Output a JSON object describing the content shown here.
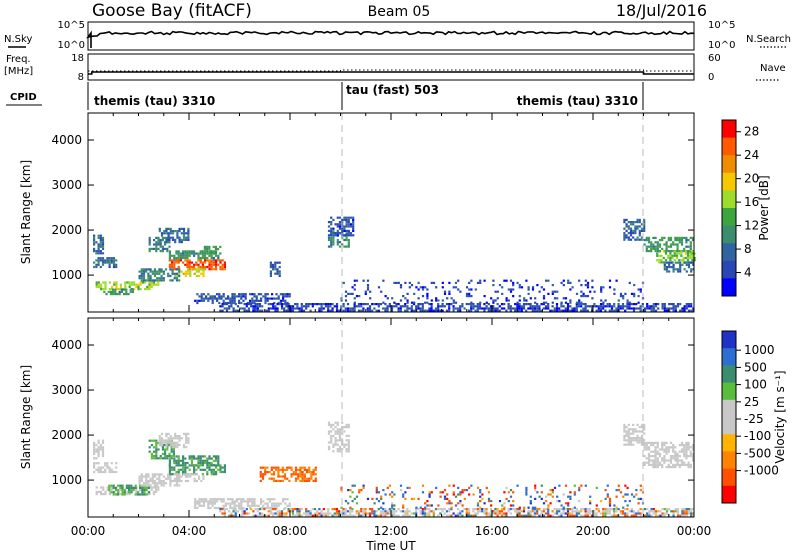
{
  "header": {
    "station": "Goose Bay (fitACF)",
    "beam": "Beam 05",
    "date": "18/Jul/2016"
  },
  "side_labels": {
    "nsky": "N.Sky",
    "nsearch": "N.Search",
    "freq_line1": "Freq.",
    "freq_line2": "[MHz]",
    "nave": "Nave",
    "cpid": "CPID"
  },
  "small_panels": {
    "noise_left_ticks": [
      "10^5",
      "10^0"
    ],
    "noise_right_ticks": [
      "10^5",
      "10^0"
    ],
    "freq_ticks": [
      "18",
      "8"
    ],
    "nave_ticks": [
      "60",
      "0"
    ]
  },
  "cpid_segments": [
    {
      "label": "themis (tau) 3310",
      "start": "00:00",
      "end": "10:00"
    },
    {
      "label": "tau (fast) 503",
      "start": "10:00",
      "end": "21:55"
    },
    {
      "label": "themis (tau) 3310",
      "start": "21:55",
      "end": "24:00"
    }
  ],
  "power_colorbar": {
    "title": "Power [dB]",
    "ticks": [
      "28",
      "24",
      "20",
      "16",
      "12",
      "8",
      "4"
    ],
    "colors": [
      "#ff0000",
      "#ff5a00",
      "#f08c00",
      "#f5c800",
      "#9bdc2d",
      "#3ca540",
      "#3c8c6e",
      "#3064a0",
      "#2846b4",
      "#0000ff"
    ]
  },
  "velocity_colorbar": {
    "title": "Velocity [m s⁻¹]",
    "ticks": [
      "1000",
      "500",
      "100",
      "25",
      "-25",
      "-100",
      "-500",
      "-1000"
    ],
    "colors": [
      "#1e32c8",
      "#2d6ed2",
      "#3c8c6e",
      "#5abe3c",
      "#c8c8c8",
      "#c8c8c8",
      "#ffb400",
      "#ff8200",
      "#ff5000",
      "#ff0000"
    ]
  },
  "chart_data": [
    {
      "type": "heatmap",
      "name": "power",
      "ylabel": "Slant Range [km]",
      "yticks": [
        "1000",
        "2000",
        "3000",
        "4000"
      ],
      "ylim": [
        180,
        4600
      ],
      "xlim": [
        0,
        24
      ],
      "regions": [
        {
          "x": [
            0.2,
            0.6
          ],
          "y": [
            1500,
            1900
          ],
          "v": 9
        },
        {
          "x": [
            0.2,
            1.1
          ],
          "y": [
            1200,
            1400
          ],
          "v": 10
        },
        {
          "x": [
            0.3,
            2.8
          ],
          "y": [
            700,
            860
          ],
          "v": 18
        },
        {
          "x": [
            0.6,
            1.8
          ],
          "y": [
            560,
            700
          ],
          "v": 12
        },
        {
          "x": [
            2.4,
            3.2
          ],
          "y": [
            1550,
            1850
          ],
          "v": 11
        },
        {
          "x": [
            2.8,
            4.0
          ],
          "y": [
            1750,
            2050
          ],
          "v": 9
        },
        {
          "x": [
            3.2,
            5.2
          ],
          "y": [
            1350,
            1550
          ],
          "v": 13
        },
        {
          "x": [
            3.2,
            5.4
          ],
          "y": [
            1150,
            1350
          ],
          "v": 27
        },
        {
          "x": [
            3.4,
            4.6
          ],
          "y": [
            1000,
            1150
          ],
          "v": 20
        },
        {
          "x": [
            4.5,
            5.2
          ],
          "y": [
            1500,
            1650
          ],
          "v": 14
        },
        {
          "x": [
            2.0,
            3.6
          ],
          "y": [
            900,
            1150
          ],
          "v": 11
        },
        {
          "x": [
            4.2,
            8.0
          ],
          "y": [
            400,
            600
          ],
          "v": 7
        },
        {
          "x": [
            7.2,
            7.6
          ],
          "y": [
            1000,
            1300
          ],
          "v": 8
        },
        {
          "x": [
            9.5,
            10.3
          ],
          "y": [
            1650,
            2000
          ],
          "v": 12
        },
        {
          "x": [
            9.5,
            10.5
          ],
          "y": [
            1900,
            2300
          ],
          "v": 7
        },
        {
          "x": [
            5.2,
            24
          ],
          "y": [
            200,
            380
          ],
          "v": 6
        },
        {
          "x": [
            10,
            22
          ],
          "y": [
            380,
            900
          ],
          "v": 6
        },
        {
          "x": [
            21.2,
            22
          ],
          "y": [
            1800,
            2250
          ],
          "v": 9
        },
        {
          "x": [
            22,
            24
          ],
          "y": [
            1550,
            1850
          ],
          "v": 13
        },
        {
          "x": [
            22.5,
            24
          ],
          "y": [
            1300,
            1550
          ],
          "v": 17
        },
        {
          "x": [
            22.8,
            24
          ],
          "y": [
            1100,
            1300
          ],
          "v": 9
        }
      ]
    },
    {
      "type": "heatmap",
      "name": "velocity",
      "ylabel": "Slant Range [km]",
      "xlabel": "Time UT",
      "xticks": [
        "00:00",
        "04:00",
        "08:00",
        "12:00",
        "16:00",
        "20:00",
        "00:00"
      ],
      "yticks": [
        "1000",
        "2000",
        "3000",
        "4000"
      ],
      "ylim": [
        180,
        4600
      ],
      "xlim": [
        0,
        24
      ],
      "regions": [
        {
          "x": [
            0.2,
            0.6
          ],
          "y": [
            1500,
            1900
          ],
          "v": 0
        },
        {
          "x": [
            0.2,
            1.1
          ],
          "y": [
            1200,
            1400
          ],
          "v": 0
        },
        {
          "x": [
            0.3,
            2.8
          ],
          "y": [
            700,
            860
          ],
          "v": 0
        },
        {
          "x": [
            0.8,
            2.4
          ],
          "y": [
            700,
            900
          ],
          "v": 110
        },
        {
          "x": [
            2.4,
            3.4
          ],
          "y": [
            1500,
            1900
          ],
          "v": 120
        },
        {
          "x": [
            3.2,
            5.2
          ],
          "y": [
            1350,
            1550
          ],
          "v": 150
        },
        {
          "x": [
            3.2,
            5.4
          ],
          "y": [
            1150,
            1350
          ],
          "v": 130
        },
        {
          "x": [
            3.4,
            4.6
          ],
          "y": [
            1000,
            1150
          ],
          "v": 0
        },
        {
          "x": [
            2.0,
            3.6
          ],
          "y": [
            900,
            1150
          ],
          "v": 0
        },
        {
          "x": [
            2.8,
            4.0
          ],
          "y": [
            1750,
            2050
          ],
          "v": 0
        },
        {
          "x": [
            6.8,
            9.0
          ],
          "y": [
            1000,
            1300
          ],
          "v": -300
        },
        {
          "x": [
            9.5,
            10.3
          ],
          "y": [
            1650,
            2300
          ],
          "v": 0
        },
        {
          "x": [
            4.2,
            8.0
          ],
          "y": [
            400,
            600
          ],
          "v": 0
        },
        {
          "x": [
            5.2,
            24
          ],
          "y": [
            200,
            380
          ],
          "v": 0
        },
        {
          "x": [
            10,
            22
          ],
          "y": [
            380,
            900
          ],
          "v": 0
        },
        {
          "x": [
            21.2,
            22
          ],
          "y": [
            1800,
            2250
          ],
          "v": 0
        },
        {
          "x": [
            22,
            24
          ],
          "y": [
            1300,
            1850
          ],
          "v": 0
        }
      ]
    }
  ]
}
